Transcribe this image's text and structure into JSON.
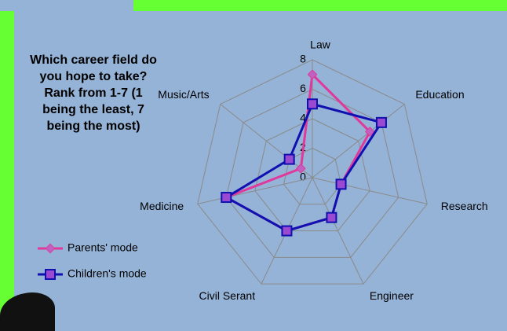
{
  "chart_data": {
    "type": "radar",
    "title": "Which career field do you hope to take? Rank from 1-7 (1 being the least, 7 being the most)",
    "categories": [
      "Law",
      "Education",
      "Research",
      "Engineer",
      "Civil Serant",
      "Medicine",
      "Music/Arts"
    ],
    "series": [
      {
        "name": "Parents' mode",
        "color": "#e0389b",
        "values": [
          7,
          5,
          2,
          3,
          4,
          6,
          1
        ]
      },
      {
        "name": "Children's mode",
        "color": "#1010b0",
        "values": [
          5,
          6,
          2,
          3,
          4,
          6,
          2
        ]
      }
    ],
    "rlim": [
      0,
      8
    ],
    "rticks": [
      0,
      2,
      4,
      6,
      8
    ],
    "grid": true,
    "legend": "lower left"
  }
}
